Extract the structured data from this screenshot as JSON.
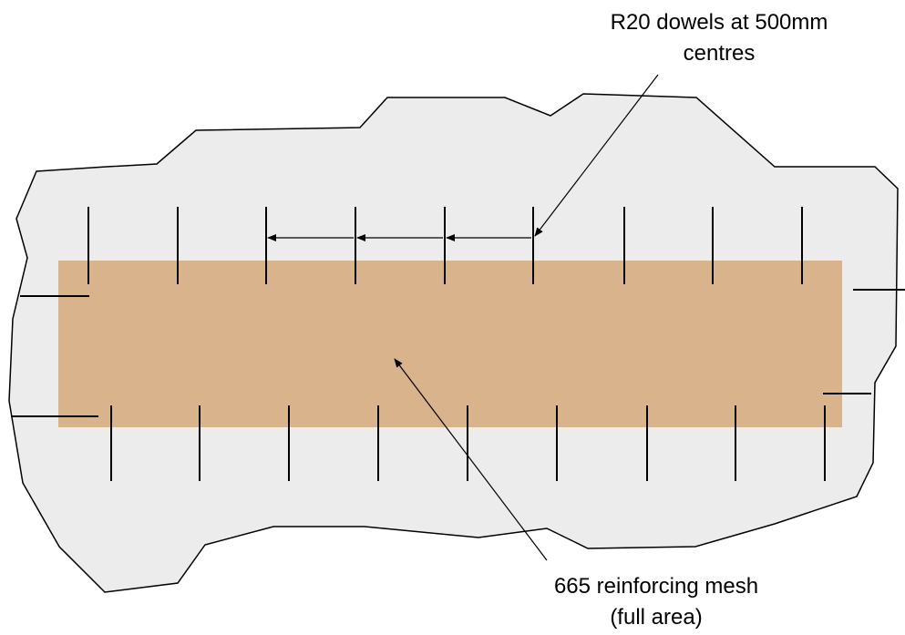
{
  "colors": {
    "slab_fill": "#ececec",
    "slab_outline": "#000000",
    "mesh_fill": "#d9b38c",
    "dowel": "#000000",
    "leader": "#000000"
  },
  "labels": {
    "dowels": {
      "line1": "R20 dowels at 500mm",
      "line2": "centres"
    },
    "mesh": {
      "line1": "665 reinforcing mesh",
      "line2": "(full area)"
    }
  },
  "elements": {
    "top_dowel_count": 9,
    "bottom_dowel_count": 9,
    "edge_dowel_count": 4,
    "spacing_arrow_count": 3
  }
}
